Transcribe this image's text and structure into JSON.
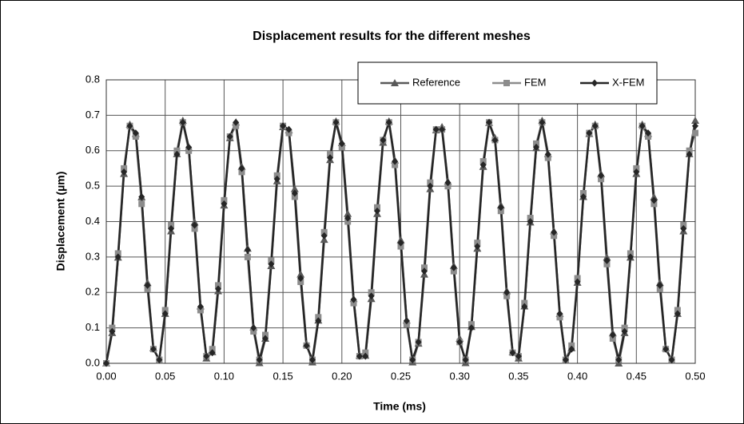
{
  "chart_data": {
    "type": "line",
    "title": "Displacement results for the different meshes",
    "x_label": "Time (ms)",
    "y_label": "Displacement (µm)",
    "xlim": [
      0,
      0.5
    ],
    "ylim": [
      0,
      0.8
    ],
    "xticks": [
      {
        "value": 0,
        "label": "0.00"
      },
      {
        "value": 0.05,
        "label": "0.05"
      },
      {
        "value": 0.1,
        "label": "0.10"
      },
      {
        "value": 0.15,
        "label": "0.15"
      },
      {
        "value": 0.2,
        "label": "0.20"
      },
      {
        "value": 0.25,
        "label": "0.25"
      },
      {
        "value": 0.3,
        "label": "0.30"
      },
      {
        "value": 0.35,
        "label": "0.35"
      },
      {
        "value": 0.4,
        "label": "0.40"
      },
      {
        "value": 0.45,
        "label": "0.45"
      },
      {
        "value": 0.5,
        "label": "0.50"
      }
    ],
    "yticks": [
      {
        "value": 0,
        "label": "0.0"
      },
      {
        "value": 0.1,
        "label": "0.1"
      },
      {
        "value": 0.2,
        "label": "0.2"
      },
      {
        "value": 0.3,
        "label": "0.3"
      },
      {
        "value": 0.4,
        "label": "0.4"
      },
      {
        "value": 0.5,
        "label": "0.5"
      },
      {
        "value": 0.6,
        "label": "0.6"
      },
      {
        "value": 0.7,
        "label": "0.7"
      },
      {
        "value": 0.8,
        "label": "0.8"
      }
    ],
    "grid": true,
    "legend": "top-right",
    "x": [
      0,
      0.005,
      0.01,
      0.015,
      0.02,
      0.025,
      0.03,
      0.035,
      0.04,
      0.045,
      0.05,
      0.055,
      0.06,
      0.065,
      0.07,
      0.075,
      0.08,
      0.085,
      0.09,
      0.095,
      0.1,
      0.105,
      0.11,
      0.115,
      0.12,
      0.125,
      0.13,
      0.135,
      0.14,
      0.145,
      0.15,
      0.155,
      0.16,
      0.165,
      0.17,
      0.175,
      0.18,
      0.185,
      0.19,
      0.195,
      0.2,
      0.205,
      0.21,
      0.215,
      0.22,
      0.225,
      0.23,
      0.235,
      0.24,
      0.245,
      0.25,
      0.255,
      0.26,
      0.265,
      0.27,
      0.275,
      0.28,
      0.285,
      0.29,
      0.295,
      0.3,
      0.305,
      0.31,
      0.315,
      0.32,
      0.325,
      0.33,
      0.335,
      0.34,
      0.345,
      0.35,
      0.355,
      0.36,
      0.365,
      0.37,
      0.375,
      0.38,
      0.385,
      0.39,
      0.395,
      0.4,
      0.405,
      0.41,
      0.415,
      0.42,
      0.425,
      0.43,
      0.435,
      0.44,
      0.445,
      0.45,
      0.455,
      0.46,
      0.465,
      0.47,
      0.475,
      0.48,
      0.485,
      0.49,
      0.495,
      0.5
    ],
    "series": [
      {
        "name": "Reference",
        "color": "#595959",
        "marker": "triangle",
        "values": [
          0,
          0.086,
          0.299,
          0.535,
          0.674,
          0.648,
          0.469,
          0.227,
          0.043,
          0.008,
          0.14,
          0.373,
          0.591,
          0.685,
          0.608,
          0.398,
          0.161,
          0.014,
          0.032,
          0.204,
          0.446,
          0.636,
          0.68,
          0.555,
          0.324,
          0.102,
          0.001,
          0.07,
          0.275,
          0.514,
          0.667,
          0.658,
          0.492,
          0.251,
          0.055,
          0.003,
          0.121,
          0.349,
          0.574,
          0.683,
          0.622,
          0.422,
          0.182,
          0.022,
          0.022,
          0.182,
          0.422,
          0.623,
          0.683,
          0.573,
          0.348,
          0.121,
          0.003,
          0.056,
          0.251,
          0.492,
          0.658,
          0.667,
          0.513,
          0.275,
          0.07,
          0.001,
          0.103,
          0.324,
          0.555,
          0.679,
          0.636,
          0.446,
          0.204,
          0.032,
          0.014,
          0.161,
          0.398,
          0.608,
          0.685,
          0.591,
          0.373,
          0.14,
          0.008,
          0.043,
          0.228,
          0.47,
          0.648,
          0.674,
          0.534,
          0.299,
          0.085,
          0,
          0.086,
          0.299,
          0.535,
          0.674,
          0.648,
          0.469,
          0.227,
          0.043,
          0.008,
          0.14,
          0.373,
          0.591,
          0.685
        ]
      },
      {
        "name": "FEM",
        "color": "#8c8c8c",
        "marker": "square",
        "values": [
          0,
          0.1,
          0.31,
          0.55,
          0.67,
          0.64,
          0.45,
          0.21,
          0.04,
          0.01,
          0.15,
          0.39,
          0.6,
          0.68,
          0.6,
          0.38,
          0.15,
          0.02,
          0.04,
          0.22,
          0.46,
          0.64,
          0.67,
          0.54,
          0.3,
          0.09,
          0.01,
          0.08,
          0.29,
          0.53,
          0.67,
          0.65,
          0.47,
          0.23,
          0.05,
          0.01,
          0.13,
          0.37,
          0.59,
          0.68,
          0.61,
          0.4,
          0.17,
          0.02,
          0.03,
          0.2,
          0.44,
          0.63,
          0.68,
          0.56,
          0.33,
          0.11,
          0.01,
          0.06,
          0.27,
          0.51,
          0.66,
          0.66,
          0.5,
          0.26,
          0.06,
          0.01,
          0.11,
          0.34,
          0.57,
          0.68,
          0.63,
          0.43,
          0.19,
          0.03,
          0.02,
          0.17,
          0.41,
          0.62,
          0.68,
          0.58,
          0.36,
          0.13,
          0.01,
          0.05,
          0.24,
          0.48,
          0.65,
          0.67,
          0.52,
          0.28,
          0.07,
          0.01,
          0.1,
          0.31,
          0.55,
          0.67,
          0.64,
          0.45,
          0.21,
          0.04,
          0.01,
          0.15,
          0.39,
          0.6,
          0.65
        ]
      },
      {
        "name": "X-FEM",
        "color": "#262626",
        "marker": "diamond",
        "values": [
          0,
          0.09,
          0.3,
          0.54,
          0.67,
          0.65,
          0.47,
          0.22,
          0.04,
          0.01,
          0.14,
          0.38,
          0.59,
          0.68,
          0.61,
          0.39,
          0.16,
          0.02,
          0.03,
          0.21,
          0.45,
          0.64,
          0.68,
          0.55,
          0.32,
          0.1,
          0.01,
          0.07,
          0.28,
          0.52,
          0.67,
          0.66,
          0.48,
          0.24,
          0.05,
          0.01,
          0.12,
          0.36,
          0.58,
          0.68,
          0.62,
          0.41,
          0.18,
          0.02,
          0.02,
          0.19,
          0.43,
          0.63,
          0.68,
          0.57,
          0.34,
          0.12,
          0.01,
          0.06,
          0.26,
          0.5,
          0.66,
          0.66,
          0.51,
          0.27,
          0.06,
          0.01,
          0.1,
          0.33,
          0.56,
          0.68,
          0.63,
          0.44,
          0.2,
          0.03,
          0.02,
          0.16,
          0.4,
          0.61,
          0.68,
          0.59,
          0.37,
          0.14,
          0.01,
          0.04,
          0.23,
          0.47,
          0.65,
          0.67,
          0.53,
          0.29,
          0.08,
          0.01,
          0.09,
          0.3,
          0.54,
          0.67,
          0.65,
          0.46,
          0.22,
          0.04,
          0.01,
          0.14,
          0.38,
          0.59,
          0.67
        ]
      }
    ]
  }
}
